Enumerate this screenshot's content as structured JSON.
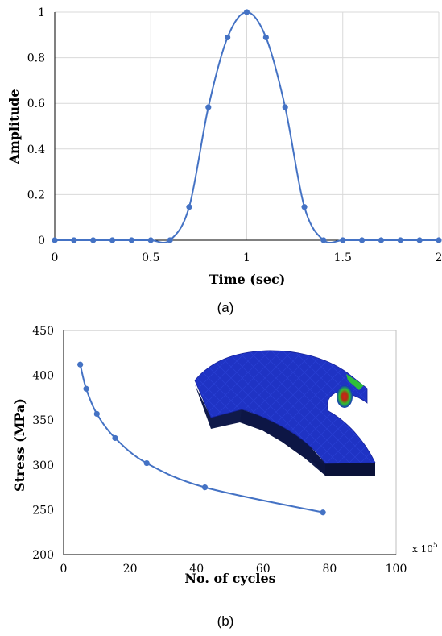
{
  "chart_data": [
    {
      "type": "line",
      "caption": "(a)",
      "xlabel": "Time (sec)",
      "ylabel": "Amplitude",
      "xlim": [
        0,
        2
      ],
      "ylim": [
        0,
        1
      ],
      "xticks": [
        "0",
        "0.5",
        "1",
        "1.5",
        "2"
      ],
      "yticks": [
        "0",
        "0.2",
        "0.4",
        "0.6",
        "0.8",
        "1"
      ],
      "grid": true,
      "line_color": "#4472c4",
      "series": [
        {
          "x": [
            0,
            0.1,
            0.2,
            0.3,
            0.4,
            0.5,
            0.6,
            0.7,
            0.8,
            0.9,
            1.0,
            1.1,
            1.2,
            1.3,
            1.4,
            1.5,
            1.6,
            1.7,
            1.8,
            1.9,
            2.0
          ],
          "values": [
            0,
            0,
            0,
            0,
            0,
            0,
            0,
            0.146,
            0.583,
            0.889,
            1.0,
            0.889,
            0.583,
            0.146,
            0,
            0,
            0,
            0,
            0,
            0,
            0
          ]
        }
      ]
    },
    {
      "type": "line",
      "caption": "(b)",
      "xlabel": "No. of cycles",
      "ylabel": "Stress (MPa)",
      "x_multiplier": "x 10",
      "x_multiplier_exp": "5",
      "xlim": [
        0,
        100
      ],
      "ylim": [
        200,
        450
      ],
      "xticks": [
        "0",
        "20",
        "40",
        "60",
        "80",
        "100"
      ],
      "yticks": [
        "200",
        "250",
        "300",
        "350",
        "400",
        "450"
      ],
      "grid": false,
      "line_color": "#4472c4",
      "inset_image": "fea-stress-contour-model",
      "series": [
        {
          "x": [
            5,
            6.8,
            10,
            15.5,
            25,
            42.5,
            78
          ],
          "values": [
            412,
            385,
            357,
            330,
            302,
            275,
            247
          ]
        }
      ]
    }
  ]
}
